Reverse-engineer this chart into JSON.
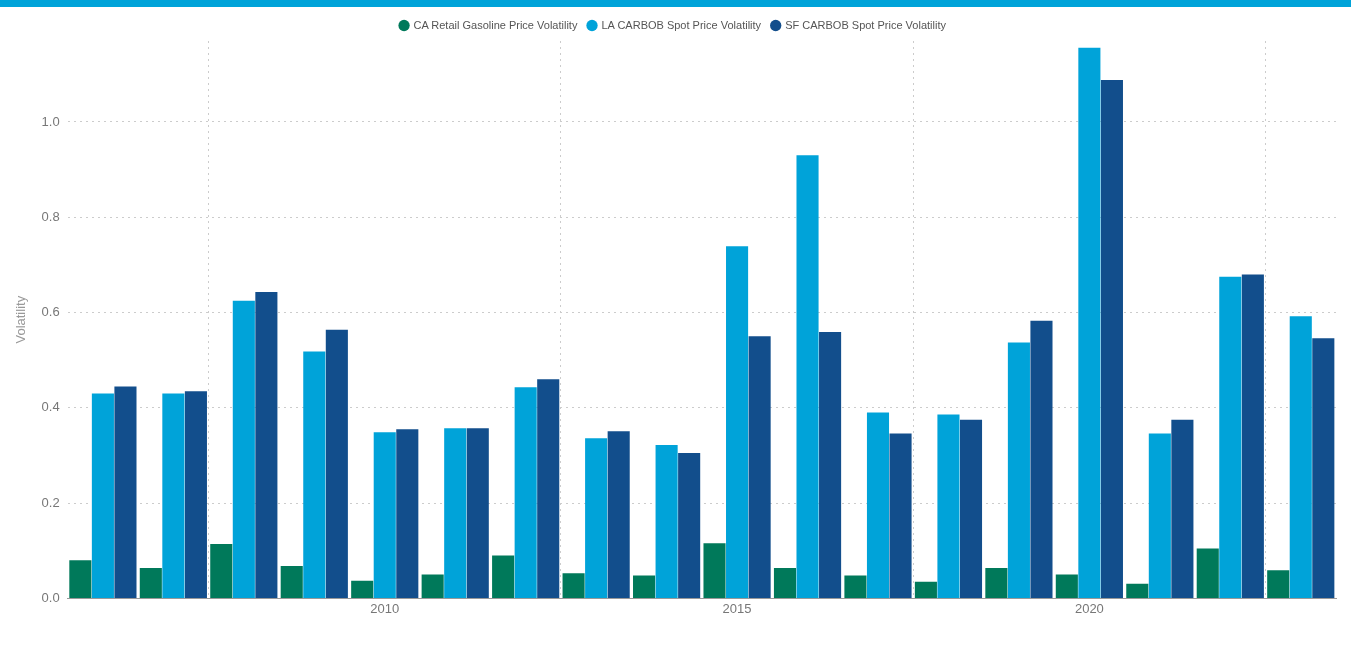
{
  "chart_data": {
    "type": "bar",
    "ylabel": "Volatility",
    "x": [
      2006,
      2007,
      2008,
      2009,
      2010,
      2011,
      2012,
      2013,
      2014,
      2015,
      2016,
      2017,
      2018,
      2019,
      2020,
      2021,
      2022,
      2023
    ],
    "xlim": [
      2005.5,
      2023.5
    ],
    "xticks": [
      2010,
      2015,
      2020
    ],
    "ylim": [
      0,
      1.17
    ],
    "yticks": [
      {
        "value": 0,
        "label": "0.0"
      },
      0.2,
      0.4,
      0.6,
      0.8,
      {
        "value": 1,
        "label": "1.0"
      }
    ],
    "series": [
      {
        "name": "CA Retail Gasoline Price Volatility",
        "color": "#00795a",
        "values": [
          0.08,
          0.064,
          0.114,
          0.068,
          0.037,
          0.05,
          0.09,
          0.053,
          0.048,
          0.116,
          0.064,
          0.048,
          0.035,
          0.064,
          0.05,
          0.031,
          0.105,
          0.059
        ]
      },
      {
        "name": "LA CARBOB Spot Price Volatility",
        "color": "#00a3d9",
        "values": [
          0.43,
          0.43,
          0.625,
          0.518,
          0.349,
          0.357,
          0.443,
          0.336,
          0.322,
          0.739,
          0.93,
          0.39,
          0.386,
          0.537,
          1.156,
          0.346,
          0.675,
          0.592
        ]
      },
      {
        "name": "SF CARBOB Spot Price Volatility",
        "color": "#124e8c",
        "values": [
          0.445,
          0.435,
          0.643,
          0.564,
          0.355,
          0.357,
          0.46,
          0.351,
          0.305,
          0.55,
          0.559,
          0.346,
          0.375,
          0.583,
          1.088,
          0.375,
          0.68,
          0.546
        ]
      }
    ],
    "grid": true,
    "legend": "top"
  }
}
